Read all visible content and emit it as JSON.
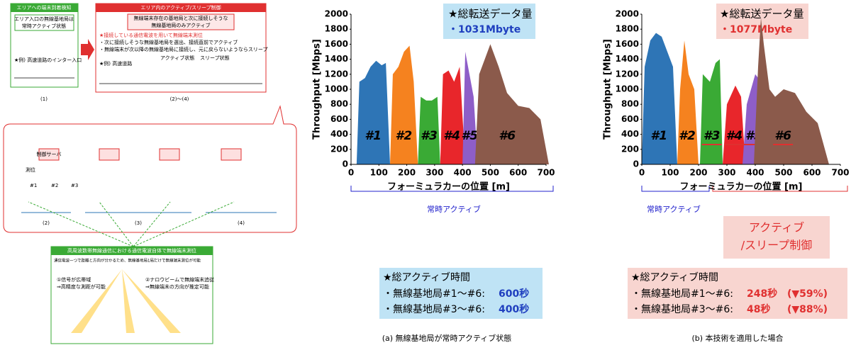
{
  "diagram": {
    "box1": {
      "title": "エリアへの端末到着検知",
      "text": [
        "エリア入口の無線基地局は",
        "常時アクティブ状態"
      ],
      "example": "★例) 高速道路のインター入口",
      "label": "(1)"
    },
    "box2": {
      "title": "エリア内のアクティブ/スリープ制御",
      "note": [
        "無線端末存在の基地局と次に接続しそうな",
        "無線基地局のみアクティブ"
      ],
      "lines": [
        "★接続している通信電波を用いて無線端末測位",
        "・次に接続しそうな無線基地局を選出、接続直前でアクティブ",
        "・無線端末が次以降の無線基地局に接続し、元に戻らないようならスリープ"
      ],
      "example": "★例) 高速道路",
      "active": "アクティブ状態",
      "sleep": "スリープ状態",
      "label": "(2)～(4)"
    },
    "steps": {
      "labels": [
        "(2)",
        "(3)",
        "(4)"
      ],
      "server": "制御サーバ",
      "positioning": "測位",
      "stations": [
        "#1",
        "#2",
        "#3"
      ]
    },
    "box3": {
      "title": "高周波数帯無線通信における通信電波自体で無線端末測位",
      "text": "通信電波一つで距離と方向が分かるため、無線基地局1局だけで無線端末測位が可能",
      "point1": [
        "①信号が広帯域",
        "⇒高精度な測距が可能"
      ],
      "point2": [
        "②ナロウビームで無線端末追従",
        "⇒無線端末の方向が推定可能"
      ]
    }
  },
  "chart_data": [
    {
      "type": "area",
      "ylabel": "Throughput [Mbps]",
      "xlabel": "フォーミュラカーの位置 [m]",
      "xlim": [
        0,
        700
      ],
      "xticks": [
        0,
        100,
        200,
        300,
        400,
        500,
        600,
        700
      ],
      "ylim": [
        0,
        2000
      ],
      "yticks": [
        0,
        200,
        400,
        600,
        800,
        1000,
        1200,
        1400,
        1600,
        1800,
        2000
      ],
      "grid": false,
      "total_label": "★総転送データ量",
      "total_value": "・1031Mbyte",
      "bracket": "常時アクティブ",
      "active_time": {
        "title": "★総アクティブ時間",
        "line1": [
          "・無線基地局#1～#6:",
          "600秒"
        ],
        "line2": [
          "・無線基地局#3～#6:",
          "400秒"
        ]
      },
      "caption": "(a) 無線基地局が常時アクティブ状態",
      "series": [
        {
          "name": "#1",
          "color": "#2e75b6",
          "x": [
            20,
            30,
            50,
            70,
            90,
            110,
            125,
            140
          ],
          "values": [
            0,
            1100,
            1150,
            1300,
            1380,
            1320,
            1350,
            0
          ]
        },
        {
          "name": "#2",
          "color": "#f5821f",
          "x": [
            140,
            150,
            170,
            190,
            210,
            225,
            240
          ],
          "values": [
            0,
            1200,
            1300,
            1500,
            1580,
            1100,
            0
          ]
        },
        {
          "name": "#3",
          "color": "#3aaa35",
          "x": [
            240,
            250,
            270,
            290,
            310,
            320
          ],
          "values": [
            0,
            900,
            850,
            850,
            900,
            0
          ]
        },
        {
          "name": "#4",
          "color": "#e8262b",
          "x": [
            320,
            330,
            350,
            370,
            390,
            410
          ],
          "values": [
            0,
            1200,
            1250,
            1100,
            1300,
            0
          ]
        },
        {
          "name": "#5",
          "color": "#8e5ec8",
          "x": [
            400,
            410,
            425,
            440,
            455
          ],
          "values": [
            0,
            1500,
            1200,
            900,
            0
          ]
        },
        {
          "name": "#6",
          "color": "#8b5a4b",
          "x": [
            445,
            460,
            480,
            500,
            530,
            560,
            600,
            640,
            680,
            710
          ],
          "values": [
            0,
            1200,
            1400,
            1600,
            1300,
            950,
            780,
            750,
            600,
            0
          ]
        }
      ]
    },
    {
      "type": "area",
      "ylabel": "Throughput [Mbps]",
      "xlabel": "フォーミュラカーの位置 [m]",
      "xlim": [
        0,
        700
      ],
      "xticks": [
        0,
        100,
        200,
        300,
        400,
        500,
        600,
        700
      ],
      "ylim": [
        0,
        2000
      ],
      "yticks": [
        0,
        200,
        400,
        600,
        800,
        1000,
        1200,
        1400,
        1600,
        1800,
        2000
      ],
      "grid": false,
      "total_label": "★総転送データ量",
      "total_value": "・1077Mbyte",
      "bracket": "常時アクティブ",
      "control": [
        "アクティブ",
        "/スリープ制御"
      ],
      "active_time": {
        "title": "★総アクティブ時間",
        "line1": [
          "・無線基地局#1～#6:",
          "248秒",
          "(▼59%)"
        ],
        "line2": [
          "・無線基地局#3～#6:",
          "48秒",
          "(▼88%)"
        ]
      },
      "caption": "(b) 本技術を適用した場合",
      "series": [
        {
          "name": "#1",
          "color": "#2e75b6",
          "x": [
            0,
            10,
            30,
            50,
            70,
            90,
            110,
            125
          ],
          "values": [
            0,
            1300,
            1650,
            1750,
            1700,
            1500,
            1300,
            0
          ]
        },
        {
          "name": "#2",
          "color": "#f5821f",
          "x": [
            125,
            135,
            150,
            165,
            185,
            200
          ],
          "values": [
            0,
            1000,
            1650,
            1200,
            1000,
            0
          ]
        },
        {
          "name": "#3",
          "color": "#3aaa35",
          "x": [
            205,
            215,
            240,
            260,
            275,
            285
          ],
          "values": [
            0,
            1200,
            1100,
            1350,
            1400,
            0
          ]
        },
        {
          "name": "#4",
          "color": "#e8262b",
          "x": [
            285,
            300,
            330,
            350,
            365
          ],
          "values": [
            0,
            800,
            1050,
            900,
            0
          ]
        },
        {
          "name": "#5",
          "color": "#8e5ec8",
          "x": [
            355,
            370,
            385,
            400,
            420,
            440
          ],
          "values": [
            0,
            800,
            1000,
            1200,
            1100,
            0
          ]
        },
        {
          "name": "#6",
          "color": "#8b5a4b",
          "x": [
            395,
            410,
            420,
            430,
            450,
            470,
            500,
            540,
            580,
            620,
            660
          ],
          "values": [
            0,
            1300,
            1950,
            1600,
            1000,
            900,
            1000,
            950,
            700,
            550,
            0
          ]
        }
      ]
    }
  ]
}
